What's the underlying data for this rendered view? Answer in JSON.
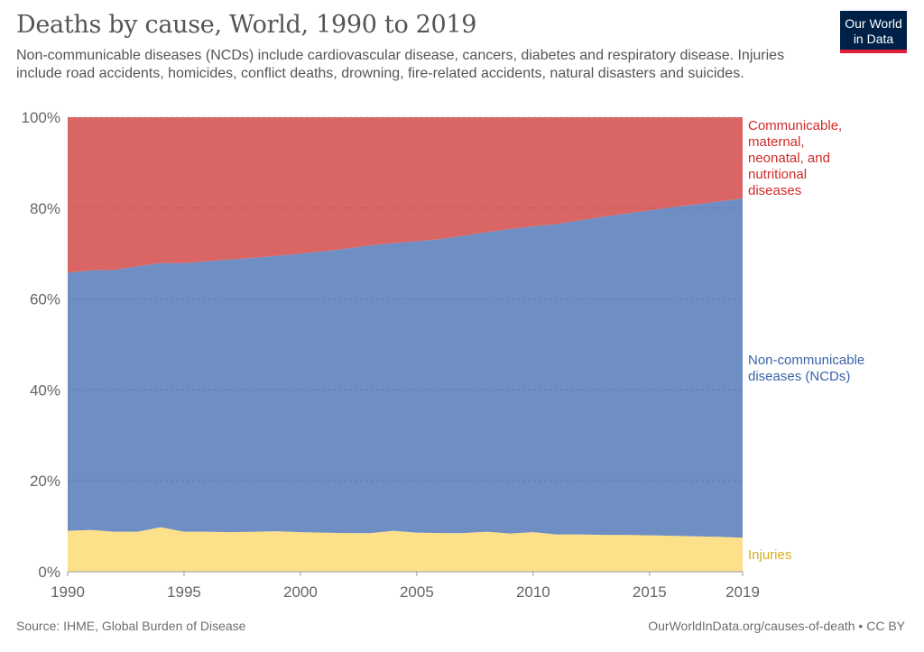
{
  "title": "Deaths by cause, World, 1990 to 2019",
  "subtitle": "Non-communicable diseases (NCDs) include cardiovascular disease, cancers, diabetes and respiratory disease. Injuries include road accidents, homicides, conflict deaths, drowning, fire-related accidents, natural disasters and suicides.",
  "logo": {
    "line1": "Our World",
    "line2": "in Data",
    "bg_color": "#002147",
    "accent_color": "#e0203a"
  },
  "source": "Source: IHME, Global Burden of Disease",
  "credit": "OurWorldInData.org/causes-of-death • CC BY",
  "chart_data": {
    "type": "area",
    "stacked": true,
    "normalized": true,
    "x": [
      1990,
      1991,
      1992,
      1993,
      1994,
      1995,
      1996,
      1997,
      1998,
      1999,
      2000,
      2001,
      2002,
      2003,
      2004,
      2005,
      2006,
      2007,
      2008,
      2009,
      2010,
      2011,
      2012,
      2013,
      2014,
      2015,
      2016,
      2017,
      2018,
      2019
    ],
    "series": [
      {
        "name": "Injuries",
        "color": "#fde08a",
        "label_color": "#d6ad1e",
        "label_lines": [
          "Injuries"
        ],
        "values": [
          9.0,
          9.2,
          8.8,
          8.8,
          9.8,
          8.8,
          8.8,
          8.7,
          8.8,
          8.9,
          8.7,
          8.6,
          8.5,
          8.5,
          9.0,
          8.6,
          8.5,
          8.5,
          8.8,
          8.4,
          8.7,
          8.2,
          8.2,
          8.1,
          8.1,
          8.0,
          7.9,
          7.8,
          7.7,
          7.5
        ]
      },
      {
        "name": "Non-communicable diseases (NCDs)",
        "color": "#6e8ec4",
        "label_color": "#3c64a8",
        "label_lines": [
          "Non-communicable",
          "diseases (NCDs)"
        ],
        "values": [
          56.8,
          57.1,
          57.6,
          58.4,
          58.1,
          59.1,
          59.5,
          60.0,
          60.3,
          60.6,
          61.3,
          61.9,
          62.6,
          63.3,
          63.3,
          64.1,
          64.7,
          65.4,
          65.9,
          67.0,
          67.3,
          68.3,
          69.1,
          70.0,
          70.7,
          71.5,
          72.3,
          73.0,
          73.8,
          74.6
        ]
      },
      {
        "name": "Communicable, maternal, neonatal, and nutritional diseases",
        "color": "#d96565",
        "label_color": "#cf2a2a",
        "label_lines": [
          "Communicable,",
          "maternal,",
          "neonatal, and",
          "nutritional",
          "diseases"
        ],
        "values": [
          34.2,
          33.7,
          33.6,
          32.8,
          32.1,
          32.1,
          31.7,
          31.3,
          30.9,
          30.5,
          30.0,
          29.5,
          28.9,
          28.2,
          27.7,
          27.3,
          26.8,
          26.1,
          25.3,
          24.6,
          24.0,
          23.5,
          22.7,
          21.9,
          21.2,
          20.5,
          19.8,
          19.2,
          18.5,
          17.9
        ]
      }
    ],
    "y_ticks": [
      "0%",
      "20%",
      "40%",
      "60%",
      "80%",
      "100%"
    ],
    "x_ticks": [
      "1990",
      "1995",
      "2000",
      "2005",
      "2010",
      "2015",
      "2019"
    ],
    "x_tick_values": [
      1990,
      1995,
      2000,
      2005,
      2010,
      2015,
      2019
    ],
    "ylim": [
      0,
      100
    ],
    "xlim": [
      1990,
      2019
    ],
    "xlabel": "",
    "ylabel": "",
    "grid": "horizontal dashed",
    "legend": "right, labels next to series"
  }
}
